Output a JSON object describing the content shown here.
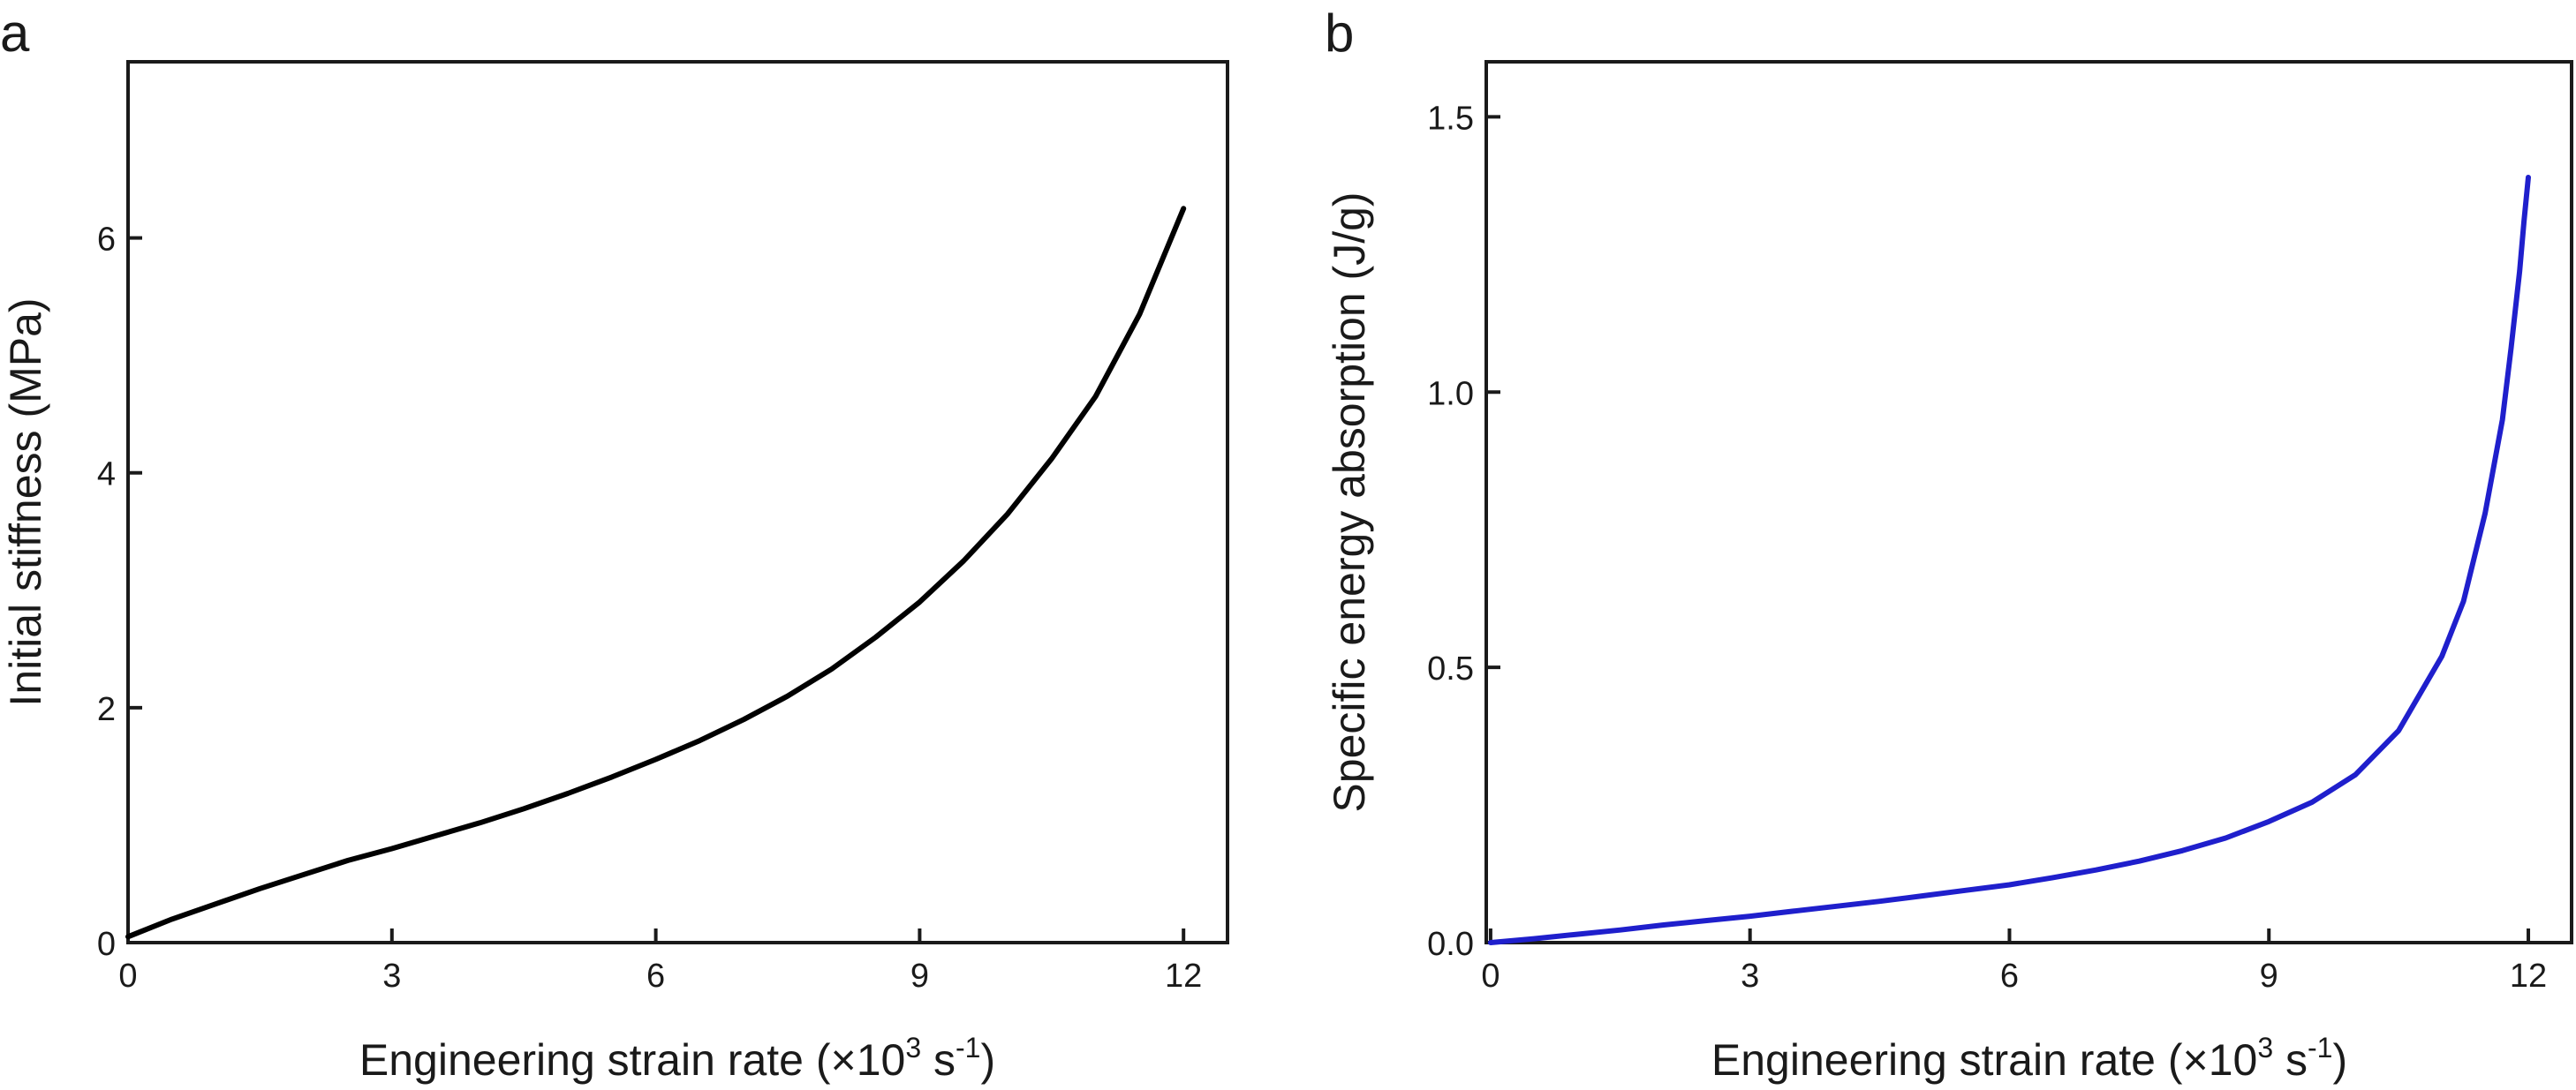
{
  "chart_data": [
    {
      "panel": "a",
      "type": "line",
      "title": "",
      "xlabel": {
        "prefix": "Engineering strain rate (×10",
        "sup1": "3",
        "mid": " s",
        "sup2": "-1",
        "suffix": ")"
      },
      "ylabel": "Initial stiffness (MPa)",
      "xlim": [
        0,
        12.5
      ],
      "ylim": [
        0,
        7.5
      ],
      "xticks": [
        0,
        3,
        6,
        9,
        12
      ],
      "yticks": [
        0,
        2,
        4,
        6
      ],
      "xtick_labels": [
        "0",
        "3",
        "6",
        "9",
        "12"
      ],
      "ytick_labels": [
        "0",
        "2",
        "4",
        "6"
      ],
      "grid": false,
      "series": [
        {
          "color": "#000000",
          "x": [
            0,
            0.5,
            1,
            1.5,
            2,
            2.5,
            3,
            3.5,
            4,
            4.5,
            5,
            5.5,
            6,
            6.5,
            7,
            7.5,
            8,
            8.5,
            9,
            9.5,
            10,
            10.5,
            11,
            11.5,
            12
          ],
          "y": [
            0.05,
            0.2,
            0.33,
            0.46,
            0.58,
            0.7,
            0.8,
            0.91,
            1.02,
            1.14,
            1.27,
            1.41,
            1.56,
            1.72,
            1.9,
            2.1,
            2.33,
            2.6,
            2.9,
            3.25,
            3.65,
            4.12,
            4.65,
            5.35,
            6.25
          ]
        }
      ]
    },
    {
      "panel": "b",
      "type": "line",
      "title": "",
      "xlabel": {
        "prefix": "Engineering strain rate (×10",
        "sup1": "3",
        "mid": " s",
        "sup2": "-1",
        "suffix": ")"
      },
      "ylabel": "Specific energy absorption (J/g)",
      "xlim": [
        -0.05,
        12.5
      ],
      "ylim": [
        0,
        1.6
      ],
      "xticks": [
        0,
        3,
        6,
        9,
        12
      ],
      "yticks": [
        0,
        0.5,
        1.0,
        1.5
      ],
      "xtick_labels": [
        "0",
        "3",
        "6",
        "9",
        "12"
      ],
      "ytick_labels": [
        "0.0",
        "0.5",
        "1.0",
        "1.5"
      ],
      "grid": false,
      "series": [
        {
          "color": "#1f1fcc",
          "x": [
            0,
            0.5,
            1,
            1.5,
            2,
            2.5,
            3,
            3.5,
            4,
            4.5,
            5,
            5.5,
            6,
            6.5,
            7,
            7.5,
            8,
            8.5,
            9,
            9.5,
            10,
            10.5,
            11,
            11.25,
            11.5,
            11.7,
            11.8,
            11.9,
            11.95,
            12
          ],
          "y": [
            0.0,
            0.007,
            0.015,
            0.023,
            0.032,
            0.04,
            0.048,
            0.057,
            0.066,
            0.075,
            0.085,
            0.095,
            0.105,
            0.118,
            0.132,
            0.148,
            0.167,
            0.19,
            0.22,
            0.255,
            0.305,
            0.385,
            0.52,
            0.62,
            0.78,
            0.95,
            1.08,
            1.22,
            1.31,
            1.39
          ]
        }
      ]
    }
  ]
}
